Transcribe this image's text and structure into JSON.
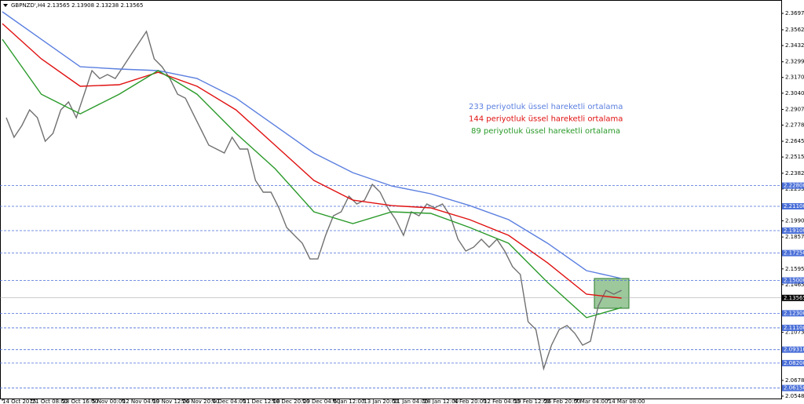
{
  "chart_data": {
    "type": "line",
    "title": "GBPNZD',H4  2.13565 2.13908 2.13238 2.13565",
    "xlim": [
      0,
      1000
    ],
    "ylim": [
      2.0529,
      2.3807
    ],
    "xticks": [
      {
        "value": 0,
        "label": "14 Oct 2015"
      },
      {
        "value": 38,
        "label": "21 Oct 08:00"
      },
      {
        "value": 77,
        "label": "28 Oct 16:00"
      },
      {
        "value": 115,
        "label": "5 Nov 00:00"
      },
      {
        "value": 154,
        "label": "12 Nov 04:00"
      },
      {
        "value": 193,
        "label": "19 Nov 12:00"
      },
      {
        "value": 231,
        "label": "26 Nov 20:00"
      },
      {
        "value": 270,
        "label": "4 Dec 04:00"
      },
      {
        "value": 309,
        "label": "11 Dec 12:00"
      },
      {
        "value": 347,
        "label": "18 Dec 20:00"
      },
      {
        "value": 386,
        "label": "29 Dec 04:00"
      },
      {
        "value": 425,
        "label": "6 Jan 12:00"
      },
      {
        "value": 464,
        "label": "13 Jan 20:00"
      },
      {
        "value": 502,
        "label": "21 Jan 04:00"
      },
      {
        "value": 541,
        "label": "28 Jan 12:00"
      },
      {
        "value": 580,
        "label": "4 Feb 20:00"
      },
      {
        "value": 618,
        "label": "12 Feb 04:00"
      },
      {
        "value": 657,
        "label": "19 Feb 12:00"
      },
      {
        "value": 696,
        "label": "26 Feb 20:00"
      },
      {
        "value": 735,
        "label": "7 Mar 04:00"
      },
      {
        "value": 778,
        "label": "14 Mar 08:00"
      }
    ],
    "yticks": [
      {
        "value": 2.3697,
        "label": "2.36970"
      },
      {
        "value": 2.3562,
        "label": "2.35620"
      },
      {
        "value": 2.34325,
        "label": "2.34325"
      },
      {
        "value": 2.3299,
        "label": "2.32990"
      },
      {
        "value": 2.317,
        "label": "2.31700"
      },
      {
        "value": 2.30405,
        "label": "2.30405"
      },
      {
        "value": 2.2907,
        "label": "2.29070"
      },
      {
        "value": 2.2778,
        "label": "2.27780"
      },
      {
        "value": 2.2645,
        "label": "2.26450"
      },
      {
        "value": 2.25155,
        "label": "2.25155"
      },
      {
        "value": 2.2382,
        "label": "2.23820"
      },
      {
        "value": 2.2253,
        "label": "2.22530"
      },
      {
        "value": 2.19905,
        "label": "2.19905"
      },
      {
        "value": 2.18575,
        "label": "2.18575"
      },
      {
        "value": 2.1595,
        "label": "2.15950"
      },
      {
        "value": 2.14655,
        "label": "2.14655"
      },
      {
        "value": 2.10735,
        "label": "2.10735"
      },
      {
        "value": 2.0678,
        "label": "2.06780"
      },
      {
        "value": 2.05485,
        "label": "2.05485"
      }
    ],
    "levels": [
      {
        "value": 2.228,
        "label": "2.22800"
      },
      {
        "value": 2.211,
        "label": "2.21100"
      },
      {
        "value": 2.191,
        "label": "2.19100"
      },
      {
        "value": 2.1725,
        "label": "2.17250"
      },
      {
        "value": 2.15,
        "label": "2.15000"
      },
      {
        "value": 2.123,
        "label": "2.12300"
      },
      {
        "value": 2.111,
        "label": "2.11100"
      },
      {
        "value": 2.0931,
        "label": "2.09310"
      },
      {
        "value": 2.082,
        "label": "2.08200"
      },
      {
        "value": 2.0615,
        "label": "2.06150"
      }
    ],
    "level_color": "#4a6fd8",
    "current_price": {
      "value": 2.13565,
      "label": "2.13565"
    },
    "price": {
      "color": "#707070",
      "x": [
        5,
        15,
        25,
        35,
        45,
        55,
        65,
        75,
        85,
        95,
        105,
        115,
        125,
        135,
        145,
        155,
        165,
        175,
        185,
        195,
        205,
        215,
        225,
        235,
        245,
        255,
        265,
        275,
        285,
        295,
        305,
        315,
        325,
        335,
        345,
        355,
        365,
        375,
        385,
        395,
        405,
        415,
        425,
        435,
        445,
        455,
        465,
        475,
        485,
        495,
        505,
        515,
        525,
        535,
        545,
        555,
        565,
        575,
        585,
        595,
        605,
        615,
        625,
        635,
        645,
        655,
        665,
        675,
        685,
        695,
        705,
        715,
        725,
        735,
        745,
        755,
        765,
        775,
        785,
        795
      ],
      "values": [
        2.2839,
        2.2678,
        2.2774,
        2.2903,
        2.2839,
        2.2645,
        2.271,
        2.2903,
        2.2968,
        2.2839,
        2.3032,
        2.3226,
        2.3161,
        2.3194,
        2.3161,
        2.3258,
        2.3355,
        2.3452,
        2.3549,
        2.3323,
        2.3258,
        2.3161,
        2.3032,
        2.3,
        2.2871,
        2.2742,
        2.2613,
        2.2581,
        2.2549,
        2.2678,
        2.2581,
        2.2581,
        2.2323,
        2.2226,
        2.2226,
        2.2097,
        2.1936,
        2.1871,
        2.1807,
        2.1677,
        2.1677,
        2.1871,
        2.2032,
        2.2065,
        2.2194,
        2.2129,
        2.2161,
        2.229,
        2.2226,
        2.2097,
        2.2,
        2.1871,
        2.2065,
        2.2032,
        2.2129,
        2.2097,
        2.2129,
        2.2032,
        2.1839,
        2.1742,
        2.1774,
        2.1839,
        2.1774,
        2.1839,
        2.1742,
        2.1613,
        2.1549,
        2.1161,
        2.1097,
        2.0774,
        2.0968,
        2.1097,
        2.1129,
        2.1065,
        2.0968,
        2.1,
        2.129,
        2.1419,
        2.1387,
        2.1419
      ]
    },
    "series": [
      {
        "name": "233 periyotluk üssel hareketli ortalama",
        "color": "#5b7fe0",
        "x": [
          0,
          50,
          100,
          150,
          200,
          250,
          300,
          350,
          400,
          450,
          500,
          550,
          600,
          650,
          700,
          750,
          795
        ],
        "values": [
          2.371,
          2.3484,
          2.3258,
          2.3239,
          2.3226,
          2.3161,
          2.3,
          2.2774,
          2.2548,
          2.2387,
          2.2277,
          2.2213,
          2.2116,
          2.2,
          2.1806,
          2.1581,
          2.1516
        ]
      },
      {
        "name": "144 periyotluk üssel hareketli ortalama",
        "color": "#e01010",
        "x": [
          0,
          50,
          100,
          150,
          200,
          250,
          300,
          350,
          400,
          450,
          500,
          550,
          600,
          650,
          700,
          750,
          795
        ],
        "values": [
          2.3613,
          2.3323,
          2.3097,
          2.311,
          2.3213,
          2.3097,
          2.2903,
          2.2613,
          2.2323,
          2.2161,
          2.2116,
          2.2097,
          2.2,
          2.1871,
          2.1645,
          2.1387,
          2.1355
        ]
      },
      {
        "name": "89 periyotluk üssel hareketli ortalama",
        "color": "#2a9a2a",
        "x": [
          0,
          50,
          100,
          150,
          200,
          250,
          300,
          350,
          400,
          450,
          500,
          550,
          600,
          650,
          700,
          750,
          795
        ],
        "values": [
          2.3484,
          2.3032,
          2.2871,
          2.3032,
          2.3226,
          2.3032,
          2.271,
          2.242,
          2.2065,
          2.1968,
          2.2065,
          2.2052,
          2.1936,
          2.1806,
          2.1484,
          2.1194,
          2.1277
        ]
      }
    ]
  }
}
